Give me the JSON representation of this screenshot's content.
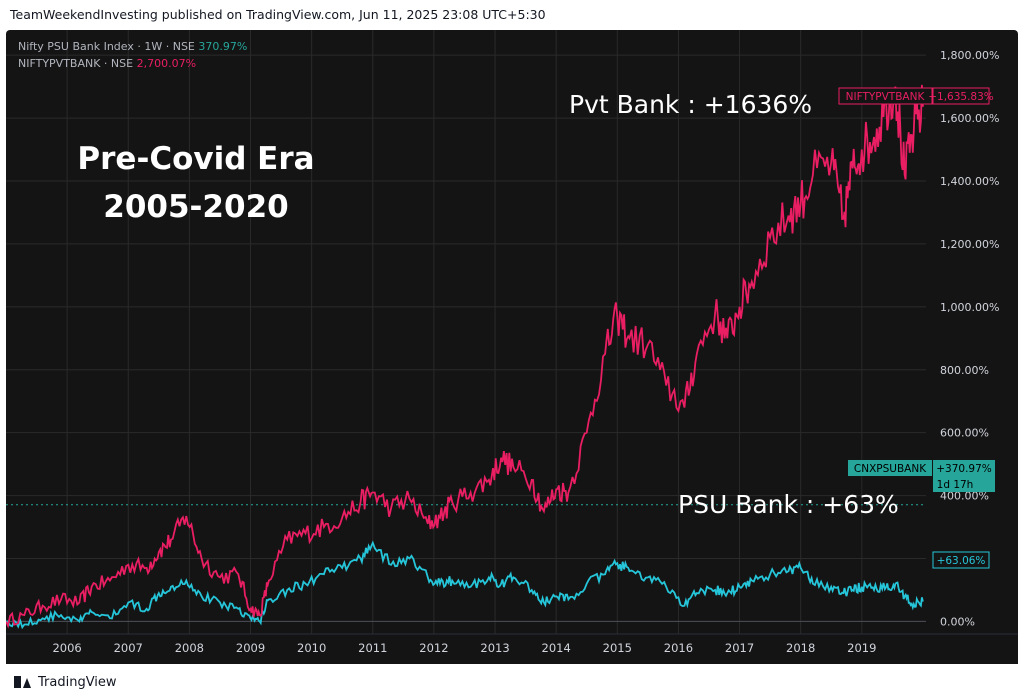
{
  "header": {
    "published": "TeamWeekendInvesting published on TradingView.com, Jun 11, 2025 23:08 UTC+5:30"
  },
  "legend": {
    "row1_name": "Nifty PSU Bank Index · 1W · NSE",
    "row1_value": "370.97%",
    "row2_name": "NIFTYPVTBANK · NSE",
    "row2_value": "2,700.07%"
  },
  "overlay": {
    "title_line1": "Pre-Covid Era",
    "title_line2": "2005-2020",
    "pvt_annotation": "Pvt Bank : +1636%",
    "psu_annotation": "PSU Bank : +63%"
  },
  "badges": {
    "pvt_name": "NIFTYPVTBANK",
    "pvt_value": "+1,635.83%",
    "psu_name": "CNXPSUBANK",
    "psu_value": "+370.97%",
    "psu_time": "1d 17h",
    "psu_current": "+63.06%"
  },
  "footer": {
    "brand": "TradingView"
  },
  "colors": {
    "pvt": "#e91e63",
    "psu": "#26c6da",
    "background": "#141414",
    "axis_text": "#d1d4dc",
    "grid": "#2a2a2a"
  },
  "chart_data": {
    "type": "line",
    "xlim": [
      2005.0,
      2020.05
    ],
    "ylim": [
      -40,
      1880
    ],
    "y_ticks": [
      0,
      200,
      400,
      600,
      800,
      1000,
      1200,
      1400,
      1600,
      1800
    ],
    "y_tick_labels": [
      "0.00%",
      "200.00%",
      "400.00%",
      "600.00%",
      "800.00%",
      "1,000.00%",
      "1,200.00%",
      "1,400.00%",
      "1,600.00%",
      "1,800.00%"
    ],
    "x_ticks": [
      2006,
      2007,
      2008,
      2009,
      2010,
      2011,
      2012,
      2013,
      2014,
      2015,
      2016,
      2017,
      2018,
      2019
    ],
    "x_tick_labels": [
      "2006",
      "2007",
      "2008",
      "2009",
      "2010",
      "2011",
      "2012",
      "2013",
      "2014",
      "2015",
      "2016",
      "2017",
      "2018",
      "2019"
    ],
    "psu_reference_level": 370.97,
    "series": [
      {
        "name": "NIFTYPVTBANK",
        "color": "#e91e63",
        "x": [
          2005.0,
          2005.3,
          2005.6,
          2005.9,
          2006.2,
          2006.4,
          2006.7,
          2007.0,
          2007.3,
          2007.5,
          2007.7,
          2007.95,
          2008.2,
          2008.5,
          2008.8,
          2009.0,
          2009.15,
          2009.3,
          2009.6,
          2009.9,
          2010.2,
          2010.5,
          2010.8,
          2011.0,
          2011.3,
          2011.6,
          2011.9,
          2012.1,
          2012.3,
          2012.6,
          2012.9,
          2013.1,
          2013.3,
          2013.6,
          2013.8,
          2014.0,
          2014.2,
          2014.5,
          2014.8,
          2015.0,
          2015.2,
          2015.5,
          2015.8,
          2016.1,
          2016.3,
          2016.6,
          2016.8,
          2017.0,
          2017.2,
          2017.5,
          2017.8,
          2018.0,
          2018.2,
          2018.5,
          2018.7,
          2018.85,
          2019.0,
          2019.2,
          2019.4,
          2019.55,
          2019.7,
          2019.85,
          2020.0
        ],
        "y": [
          0,
          20,
          50,
          70,
          60,
          110,
          130,
          180,
          170,
          220,
          260,
          335,
          200,
          140,
          150,
          40,
          20,
          130,
          260,
          280,
          300,
          330,
          380,
          410,
          360,
          390,
          310,
          330,
          380,
          410,
          450,
          520,
          490,
          450,
          350,
          420,
          410,
          600,
          850,
          970,
          900,
          880,
          750,
          680,
          850,
          980,
          900,
          1000,
          1080,
          1220,
          1290,
          1330,
          1420,
          1460,
          1280,
          1440,
          1500,
          1540,
          1640,
          1700,
          1420,
          1560,
          1636
        ]
      },
      {
        "name": "CNXPSUBANK",
        "color": "#26c6da",
        "x": [
          2005.0,
          2005.3,
          2005.6,
          2005.9,
          2006.2,
          2006.4,
          2006.7,
          2007.0,
          2007.3,
          2007.5,
          2007.7,
          2007.95,
          2008.2,
          2008.5,
          2008.8,
          2009.0,
          2009.15,
          2009.3,
          2009.6,
          2009.9,
          2010.2,
          2010.5,
          2010.8,
          2011.0,
          2011.3,
          2011.6,
          2011.9,
          2012.1,
          2012.3,
          2012.6,
          2012.9,
          2013.1,
          2013.3,
          2013.6,
          2013.8,
          2014.0,
          2014.2,
          2014.5,
          2014.8,
          2015.0,
          2015.2,
          2015.5,
          2015.8,
          2016.1,
          2016.3,
          2016.6,
          2016.8,
          2017.0,
          2017.2,
          2017.5,
          2017.8,
          2018.0,
          2018.2,
          2018.5,
          2018.7,
          2018.85,
          2019.0,
          2019.2,
          2019.4,
          2019.55,
          2019.7,
          2019.85,
          2020.0
        ],
        "y": [
          0,
          -10,
          10,
          20,
          0,
          30,
          10,
          60,
          40,
          90,
          110,
          130,
          80,
          60,
          40,
          10,
          0,
          70,
          100,
          120,
          150,
          170,
          200,
          250,
          180,
          200,
          140,
          120,
          130,
          110,
          140,
          120,
          140,
          100,
          60,
          80,
          70,
          120,
          150,
          185,
          160,
          140,
          110,
          50,
          90,
          100,
          90,
          110,
          130,
          150,
          160,
          170,
          120,
          110,
          90,
          100,
          110,
          100,
          110,
          120,
          80,
          55,
          63
        ]
      }
    ]
  }
}
